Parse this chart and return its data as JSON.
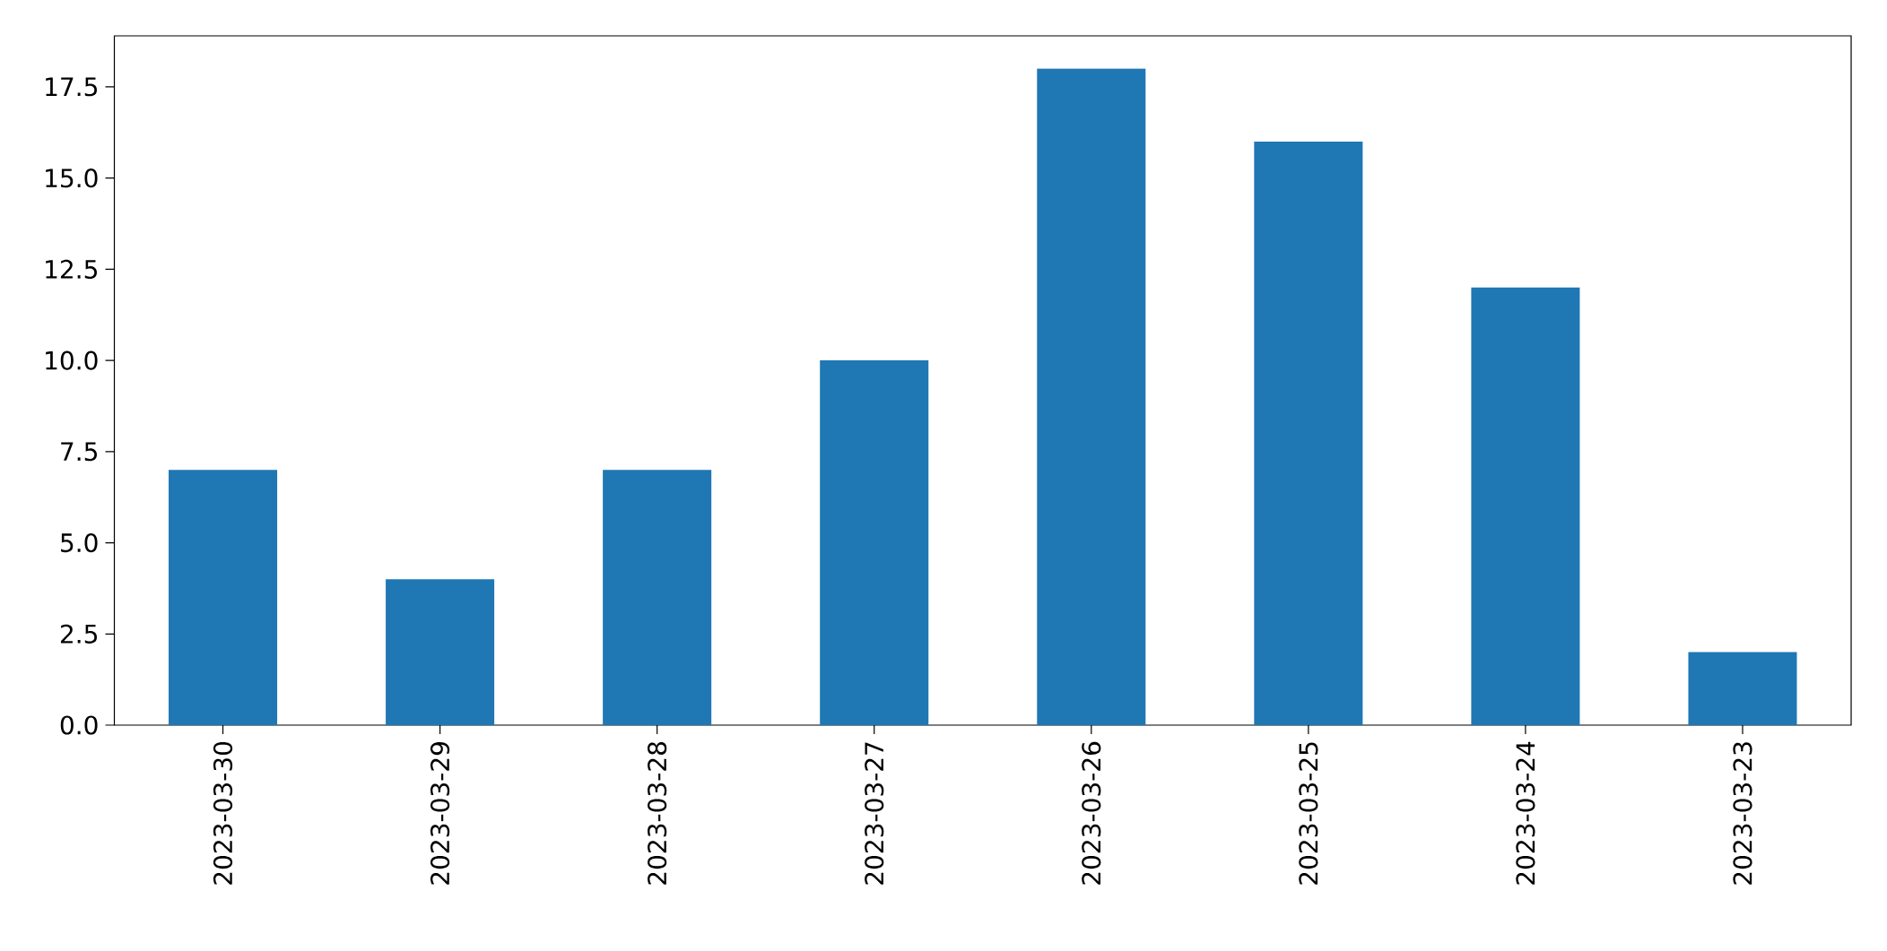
{
  "chart_data": {
    "type": "bar",
    "categories": [
      "2023-03-30",
      "2023-03-29",
      "2023-03-28",
      "2023-03-27",
      "2023-03-26",
      "2023-03-25",
      "2023-03-24",
      "2023-03-23"
    ],
    "values": [
      7,
      4,
      7,
      10,
      18,
      16,
      12,
      2
    ],
    "color": "#1f77b4",
    "ylim": [
      0,
      18.9
    ],
    "yticks": [
      {
        "value": 0,
        "label": "0.0"
      },
      {
        "value": 2.5,
        "label": "2.5"
      },
      {
        "value": 5,
        "label": "5.0"
      },
      {
        "value": 7.5,
        "label": "7.5"
      },
      {
        "value": 10,
        "label": "10.0"
      },
      {
        "value": 12.5,
        "label": "12.5"
      },
      {
        "value": 15,
        "label": "15.0"
      },
      {
        "value": 17.5,
        "label": "17.5"
      }
    ],
    "grid": false
  }
}
